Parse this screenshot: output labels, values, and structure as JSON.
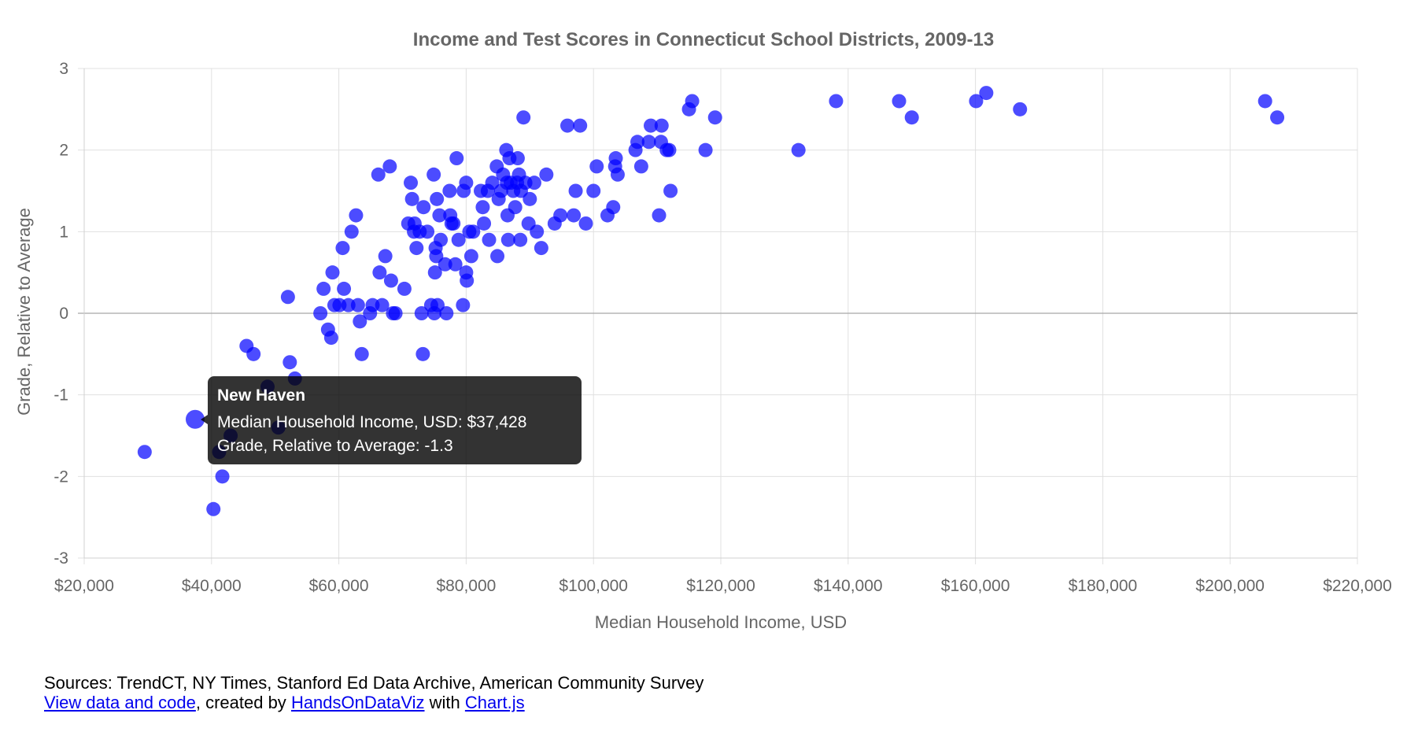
{
  "chart_data": {
    "type": "scatter",
    "title": "Income and Test Scores in Connecticut School Districts, 2009-13",
    "xlabel": "Median Household Income, USD",
    "ylabel": "Grade, Relative to Average",
    "xlim": [
      20000,
      220000
    ],
    "ylim": [
      -3,
      3
    ],
    "x_ticks": [
      20000,
      40000,
      60000,
      80000,
      100000,
      120000,
      140000,
      160000,
      180000,
      200000,
      220000
    ],
    "x_tick_labels": [
      "$20,000",
      "$40,000",
      "$60,000",
      "$80,000",
      "$100,000",
      "$120,000",
      "$140,000",
      "$160,000",
      "$180,000",
      "$200,000",
      "$220,000"
    ],
    "y_ticks": [
      -3,
      -2,
      -1,
      0,
      1,
      2,
      3
    ],
    "y_tick_labels": [
      "-3",
      "-2",
      "-1",
      "0",
      "1",
      "2",
      "3"
    ],
    "grid": true,
    "point_color": "#0000ff",
    "points": [
      {
        "x": 29500,
        "y": -1.7
      },
      {
        "x": 37428,
        "y": -1.3
      },
      {
        "x": 40300,
        "y": -2.4
      },
      {
        "x": 41200,
        "y": -1.7
      },
      {
        "x": 41700,
        "y": -2.0
      },
      {
        "x": 43000,
        "y": -1.5
      },
      {
        "x": 45500,
        "y": -0.4
      },
      {
        "x": 46600,
        "y": -0.5
      },
      {
        "x": 48800,
        "y": -0.9
      },
      {
        "x": 50500,
        "y": -1.4
      },
      {
        "x": 52000,
        "y": 0.2
      },
      {
        "x": 52300,
        "y": -0.6
      },
      {
        "x": 53100,
        "y": -0.8
      },
      {
        "x": 57100,
        "y": 0.0
      },
      {
        "x": 57600,
        "y": 0.3
      },
      {
        "x": 58300,
        "y": -0.2
      },
      {
        "x": 58800,
        "y": -0.3
      },
      {
        "x": 59000,
        "y": 0.5
      },
      {
        "x": 59300,
        "y": 0.1
      },
      {
        "x": 60100,
        "y": 0.1
      },
      {
        "x": 60600,
        "y": 0.8
      },
      {
        "x": 60800,
        "y": 0.3
      },
      {
        "x": 61500,
        "y": 0.1
      },
      {
        "x": 62000,
        "y": 1.0
      },
      {
        "x": 62700,
        "y": 1.2
      },
      {
        "x": 63000,
        "y": 0.1
      },
      {
        "x": 63300,
        "y": -0.1
      },
      {
        "x": 63600,
        "y": -0.5
      },
      {
        "x": 64900,
        "y": 0.0
      },
      {
        "x": 65300,
        "y": 0.1
      },
      {
        "x": 66200,
        "y": 1.7
      },
      {
        "x": 66400,
        "y": 0.5
      },
      {
        "x": 66800,
        "y": 0.1
      },
      {
        "x": 67300,
        "y": 0.7
      },
      {
        "x": 68000,
        "y": 1.8
      },
      {
        "x": 68200,
        "y": 0.4
      },
      {
        "x": 68500,
        "y": 0.0
      },
      {
        "x": 68900,
        "y": 0.0
      },
      {
        "x": 70300,
        "y": 0.3
      },
      {
        "x": 70900,
        "y": 1.1
      },
      {
        "x": 71300,
        "y": 1.6
      },
      {
        "x": 71500,
        "y": 1.4
      },
      {
        "x": 71800,
        "y": 1.0
      },
      {
        "x": 71900,
        "y": 1.1
      },
      {
        "x": 72200,
        "y": 0.8
      },
      {
        "x": 72700,
        "y": 1.0
      },
      {
        "x": 73000,
        "y": 0.0
      },
      {
        "x": 73200,
        "y": -0.5
      },
      {
        "x": 73300,
        "y": 1.3
      },
      {
        "x": 73900,
        "y": 1.0
      },
      {
        "x": 74500,
        "y": 0.1
      },
      {
        "x": 74900,
        "y": 1.7
      },
      {
        "x": 75000,
        "y": 0.0
      },
      {
        "x": 75100,
        "y": 0.5
      },
      {
        "x": 75200,
        "y": 0.8
      },
      {
        "x": 75300,
        "y": 0.7
      },
      {
        "x": 75400,
        "y": 1.4
      },
      {
        "x": 75500,
        "y": 0.1
      },
      {
        "x": 75800,
        "y": 1.2
      },
      {
        "x": 76000,
        "y": 0.9
      },
      {
        "x": 76700,
        "y": 0.6
      },
      {
        "x": 76900,
        "y": 0.0
      },
      {
        "x": 77400,
        "y": 1.5
      },
      {
        "x": 77500,
        "y": 1.2
      },
      {
        "x": 77700,
        "y": 1.1
      },
      {
        "x": 78000,
        "y": 1.1
      },
      {
        "x": 78300,
        "y": 0.6
      },
      {
        "x": 78500,
        "y": 1.9
      },
      {
        "x": 78800,
        "y": 0.9
      },
      {
        "x": 79500,
        "y": 0.1
      },
      {
        "x": 79600,
        "y": 1.5
      },
      {
        "x": 80000,
        "y": 1.6
      },
      {
        "x": 80000,
        "y": 0.5
      },
      {
        "x": 80100,
        "y": 0.4
      },
      {
        "x": 80500,
        "y": 1.0
      },
      {
        "x": 80800,
        "y": 0.7
      },
      {
        "x": 81100,
        "y": 1.0
      },
      {
        "x": 82300,
        "y": 1.5
      },
      {
        "x": 82600,
        "y": 1.3
      },
      {
        "x": 82800,
        "y": 1.1
      },
      {
        "x": 83400,
        "y": 1.5
      },
      {
        "x": 83600,
        "y": 0.9
      },
      {
        "x": 84100,
        "y": 1.6
      },
      {
        "x": 84800,
        "y": 1.8
      },
      {
        "x": 84900,
        "y": 0.7
      },
      {
        "x": 85100,
        "y": 1.4
      },
      {
        "x": 85500,
        "y": 1.5
      },
      {
        "x": 85800,
        "y": 1.7
      },
      {
        "x": 86300,
        "y": 2.0
      },
      {
        "x": 86400,
        "y": 1.6
      },
      {
        "x": 86500,
        "y": 1.2
      },
      {
        "x": 86600,
        "y": 0.9
      },
      {
        "x": 86800,
        "y": 1.9
      },
      {
        "x": 87000,
        "y": 1.6
      },
      {
        "x": 87400,
        "y": 1.5
      },
      {
        "x": 87700,
        "y": 1.3
      },
      {
        "x": 88000,
        "y": 1.6
      },
      {
        "x": 88100,
        "y": 1.9
      },
      {
        "x": 88300,
        "y": 1.7
      },
      {
        "x": 88500,
        "y": 0.9
      },
      {
        "x": 88600,
        "y": 1.5
      },
      {
        "x": 89000,
        "y": 2.4
      },
      {
        "x": 89300,
        "y": 1.6
      },
      {
        "x": 89800,
        "y": 1.1
      },
      {
        "x": 90000,
        "y": 1.4
      },
      {
        "x": 90700,
        "y": 1.6
      },
      {
        "x": 91100,
        "y": 1.0
      },
      {
        "x": 91800,
        "y": 0.8
      },
      {
        "x": 92600,
        "y": 1.7
      },
      {
        "x": 93900,
        "y": 1.1
      },
      {
        "x": 94800,
        "y": 1.2
      },
      {
        "x": 95900,
        "y": 2.3
      },
      {
        "x": 96900,
        "y": 1.2
      },
      {
        "x": 97200,
        "y": 1.5
      },
      {
        "x": 97900,
        "y": 2.3
      },
      {
        "x": 98800,
        "y": 1.1
      },
      {
        "x": 100000,
        "y": 1.5
      },
      {
        "x": 100500,
        "y": 1.8
      },
      {
        "x": 102200,
        "y": 1.2
      },
      {
        "x": 103100,
        "y": 1.3
      },
      {
        "x": 103400,
        "y": 1.8
      },
      {
        "x": 103500,
        "y": 1.9
      },
      {
        "x": 103800,
        "y": 1.7
      },
      {
        "x": 106600,
        "y": 2.0
      },
      {
        "x": 106900,
        "y": 2.1
      },
      {
        "x": 107500,
        "y": 1.8
      },
      {
        "x": 108700,
        "y": 2.1
      },
      {
        "x": 109000,
        "y": 2.3
      },
      {
        "x": 110300,
        "y": 1.2
      },
      {
        "x": 110600,
        "y": 2.1
      },
      {
        "x": 110700,
        "y": 2.3
      },
      {
        "x": 111500,
        "y": 2.0
      },
      {
        "x": 111900,
        "y": 2.0
      },
      {
        "x": 112100,
        "y": 1.5
      },
      {
        "x": 115000,
        "y": 2.5
      },
      {
        "x": 115500,
        "y": 2.6
      },
      {
        "x": 117600,
        "y": 2.0
      },
      {
        "x": 119100,
        "y": 2.4
      },
      {
        "x": 132200,
        "y": 2.0
      },
      {
        "x": 138100,
        "y": 2.6
      },
      {
        "x": 148000,
        "y": 2.6
      },
      {
        "x": 150000,
        "y": 2.4
      },
      {
        "x": 160100,
        "y": 2.6
      },
      {
        "x": 161700,
        "y": 2.7
      },
      {
        "x": 167000,
        "y": 2.5
      },
      {
        "x": 205500,
        "y": 2.6
      },
      {
        "x": 207400,
        "y": 2.4
      }
    ],
    "highlighted_index": 1,
    "tooltip": {
      "title": "New Haven",
      "line1": "Median Household Income, USD: $37,428",
      "line2": "Grade, Relative to Average: -1.3"
    }
  },
  "footer": {
    "sources": "Sources: TrendCT, NY Times, Stanford Ed Data Archive, American Community Survey",
    "view_link": "View data and code",
    "created_by": ", created by ",
    "author_link": "HandsOnDataViz",
    "with_text": " with ",
    "lib_link": "Chart.js"
  }
}
